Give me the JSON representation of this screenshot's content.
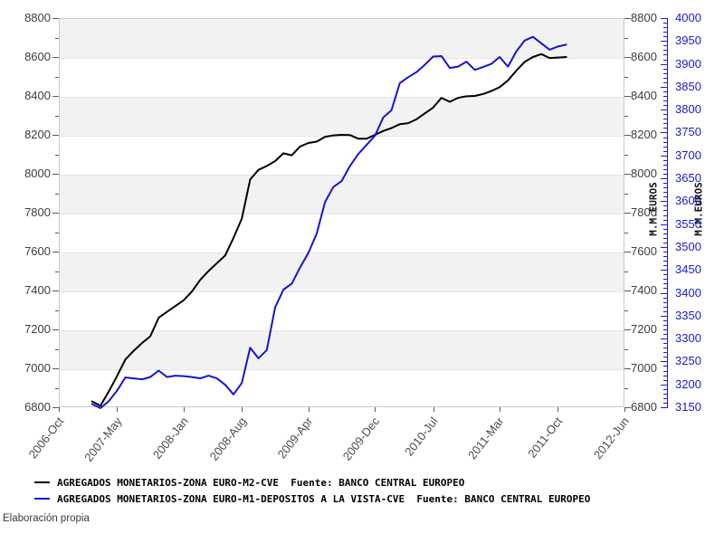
{
  "footer": {
    "credit": "Elaboración propia"
  },
  "colors": {
    "series_black": "#000000",
    "series_blue": "#1414d2",
    "band_gray": "#f2f2f2",
    "axis_text": "#3d3d3d",
    "blue_axis": "#1a1acc"
  },
  "legend": [
    {
      "label": "AGREGADOS MONETARIOS-ZONA EURO-M2-CVE  Fuente: BANCO CENTRAL EUROPEO",
      "color": "#000000"
    },
    {
      "label": "AGREGADOS MONETARIOS-ZONA EURO-M1-DEPOSITOS A LA VISTA-CVE  Fuente: BANCO CENTRAL EUROPEO",
      "color": "#1414d2"
    }
  ],
  "chart_data": {
    "type": "line",
    "grid": "horizontal-bands",
    "legend_position": "bottom-left",
    "x": [
      "2007-Feb",
      "2007-Mar",
      "2007-Apr",
      "2007-May",
      "2007-Jun",
      "2007-Jul",
      "2007-Aug",
      "2007-Sep",
      "2007-Oct",
      "2007-Nov",
      "2007-Dec",
      "2008-Jan",
      "2008-Feb",
      "2008-Mar",
      "2008-Apr",
      "2008-May",
      "2008-Jun",
      "2008-Jul",
      "2008-Aug",
      "2008-Sep",
      "2008-Oct",
      "2008-Nov",
      "2008-Dec",
      "2009-Jan",
      "2009-Feb",
      "2009-Mar",
      "2009-Apr",
      "2009-May",
      "2009-Jun",
      "2009-Jul",
      "2009-Aug",
      "2009-Sep",
      "2009-Oct",
      "2009-Nov",
      "2009-Dec",
      "2010-Jan",
      "2010-Feb",
      "2010-Mar",
      "2010-Apr",
      "2010-May",
      "2010-Jun",
      "2010-Jul",
      "2010-Aug",
      "2010-Sep",
      "2010-Oct",
      "2010-Nov",
      "2010-Dec",
      "2011-Jan",
      "2011-Feb",
      "2011-Mar",
      "2011-Apr",
      "2011-May",
      "2011-Jun",
      "2011-Jul",
      "2011-Aug",
      "2011-Sep",
      "2011-Oct",
      "2011-Nov"
    ],
    "series": [
      {
        "name": "AGREGADOS MONETARIOS-ZONA EURO-M2-CVE",
        "axis": "left",
        "color": "#000000",
        "values": [
          6830,
          6808,
          6880,
          6960,
          7045,
          7090,
          7130,
          7165,
          7260,
          7290,
          7320,
          7350,
          7395,
          7455,
          7500,
          7540,
          7580,
          7670,
          7770,
          7970,
          8020,
          8040,
          8065,
          8105,
          8095,
          8140,
          8158,
          8165,
          8190,
          8197,
          8200,
          8199,
          8180,
          8180,
          8200,
          8220,
          8235,
          8255,
          8260,
          8280,
          8310,
          8340,
          8390,
          8370,
          8390,
          8398,
          8400,
          8410,
          8425,
          8445,
          8480,
          8530,
          8575,
          8600,
          8615,
          8595,
          8597,
          8600
        ]
      },
      {
        "name": "AGREGADOS MONETARIOS-ZONA EURO-M1-DEPOSITOS A LA VISTA-CVE",
        "axis": "right_blue",
        "color": "#1414d2",
        "values": [
          3157,
          3148,
          3163,
          3186,
          3215,
          3213,
          3211,
          3216,
          3230,
          3216,
          3219,
          3218,
          3216,
          3213,
          3219,
          3213,
          3199,
          3178,
          3203,
          3280,
          3257,
          3275,
          3368,
          3407,
          3420,
          3455,
          3487,
          3529,
          3598,
          3631,
          3644,
          3677,
          3703,
          3723,
          3743,
          3783,
          3799,
          3858,
          3871,
          3882,
          3898,
          3916,
          3917,
          3891,
          3894,
          3905,
          3887,
          3893,
          3900,
          3915,
          3894,
          3927,
          3951,
          3959,
          3945,
          3931,
          3938,
          3942
        ]
      }
    ],
    "left_axis": {
      "min": 6800,
      "max": 8800,
      "tick_step": 200,
      "minor_step": 100,
      "tick_labels": [
        6800,
        7000,
        7200,
        7400,
        7600,
        7800,
        8000,
        8200,
        8400,
        8600,
        8800
      ]
    },
    "right_axis_black": {
      "title": "M.M.EUROS",
      "min": 6800,
      "max": 8800,
      "tick_step": 200,
      "minor_step": 100,
      "tick_labels": [
        6800,
        7000,
        7200,
        7400,
        7600,
        7800,
        8000,
        8200,
        8400,
        8600,
        8800
      ]
    },
    "right_axis_blue": {
      "title": "M.M.EUROS",
      "min": 3150,
      "max": 4000,
      "tick_step": 50,
      "minor_step": 10,
      "tick_labels": [
        3150,
        3200,
        3250,
        3300,
        3350,
        3400,
        3450,
        3500,
        3550,
        3600,
        3650,
        3700,
        3750,
        3800,
        3850,
        3900,
        3950,
        4000
      ]
    },
    "x_axis": {
      "months_total": 68,
      "series_start_offset_months": 4,
      "ticks": [
        {
          "label": "2006-Oct",
          "m": 0
        },
        {
          "label": "2007-May",
          "m": 7
        },
        {
          "label": "2008-Jan",
          "m": 15
        },
        {
          "label": "2008-Aug",
          "m": 22
        },
        {
          "label": "2009-Apr",
          "m": 30
        },
        {
          "label": "2009-Dec",
          "m": 38
        },
        {
          "label": "2010-Jul",
          "m": 45
        },
        {
          "label": "2011-Mar",
          "m": 53
        },
        {
          "label": "2011-Oct",
          "m": 60
        },
        {
          "label": "2012-Jun",
          "m": 68
        }
      ]
    }
  }
}
